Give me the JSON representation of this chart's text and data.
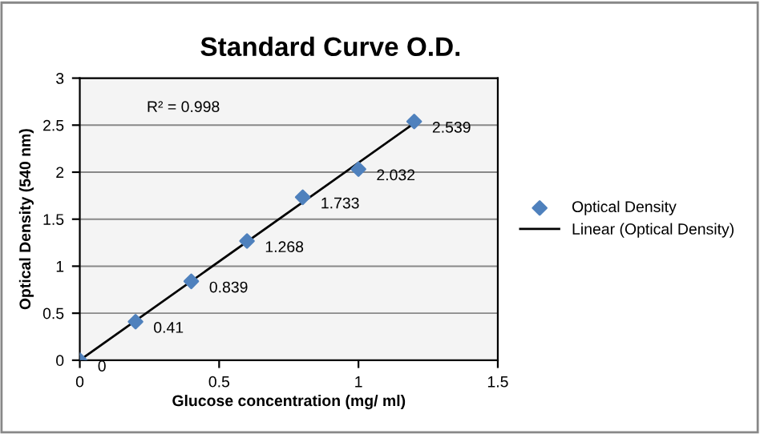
{
  "chart_data": {
    "type": "scatter",
    "title": "Standard Curve O.D.",
    "xlabel": "Glucose concentration (mg/ ml)",
    "ylabel": "Optical Density (540 nm)",
    "annotations": [
      "R² = 0.998"
    ],
    "series": [
      {
        "name": "Optical Density",
        "color": "#4f81bd",
        "marker": "diamond",
        "x": [
          0,
          0.2,
          0.4,
          0.6,
          0.8,
          1.0,
          1.2
        ],
        "values": [
          0,
          0.41,
          0.839,
          1.268,
          1.733,
          2.032,
          2.539
        ],
        "value_labels": [
          "0",
          "0.41",
          "0.839",
          "1.268",
          "1.733",
          "2.032",
          "2.539"
        ]
      },
      {
        "name": "Linear (Optical Density)",
        "type": "line",
        "color": "#000000",
        "x": [
          0,
          1.2
        ],
        "values": [
          0.0,
          2.52
        ]
      }
    ],
    "xlim": [
      0,
      1.5
    ],
    "xticks": [
      0,
      0.5,
      1,
      1.5
    ],
    "ylim": [
      0,
      3
    ],
    "yticks": [
      0,
      0.5,
      1,
      1.5,
      2,
      2.5,
      3
    ],
    "grid": "y",
    "legend": "right"
  }
}
